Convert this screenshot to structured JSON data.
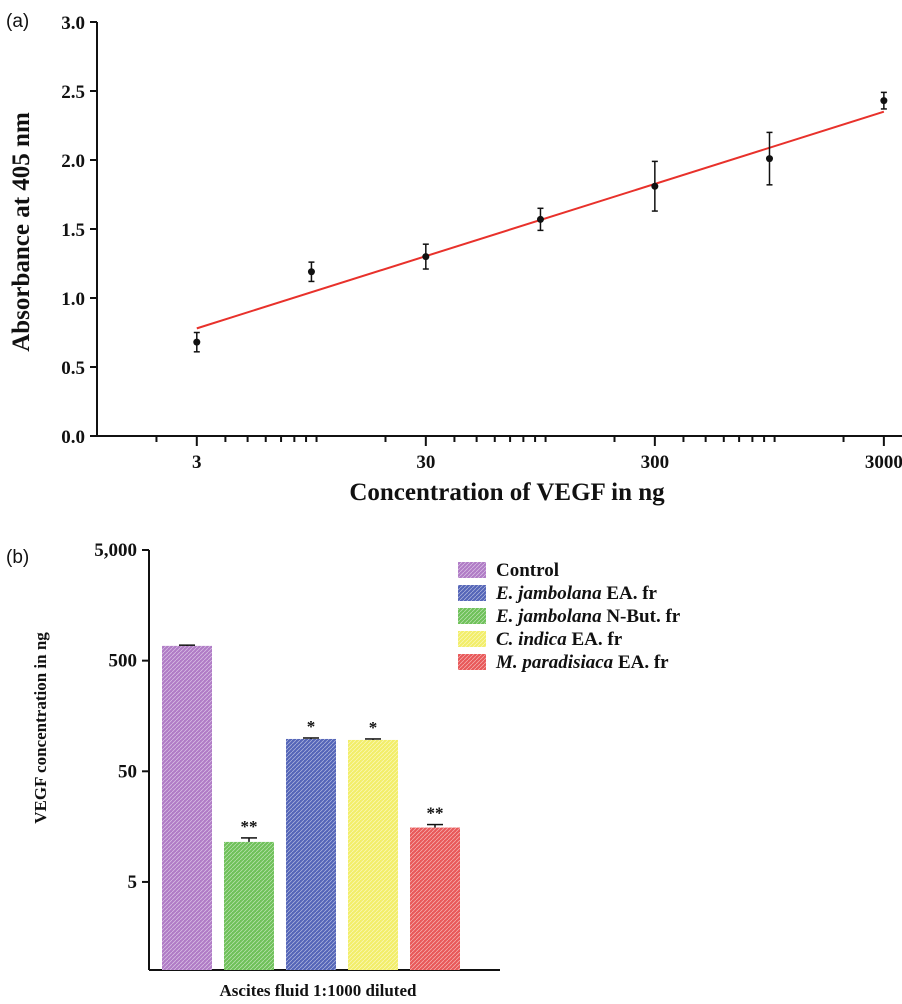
{
  "chart_data": [
    {
      "panel_label": "(a)",
      "type": "scatter",
      "xlabel": "Concentration of VEGF in ng",
      "ylabel": "Absorbance at 405 nm",
      "xscale": "log",
      "xlim": [
        1.1,
        3600
      ],
      "ylim": [
        0.0,
        3.0
      ],
      "xticks": [
        3,
        30,
        300,
        3000
      ],
      "xtick_labels": [
        "3",
        "30",
        "300",
        "3000"
      ],
      "yticks": [
        0.0,
        0.5,
        1.0,
        1.5,
        2.0,
        2.5,
        3.0
      ],
      "ytick_labels": [
        "0.0",
        "0.5",
        "1.0",
        "1.5",
        "2.0",
        "2.5",
        "3.0"
      ],
      "grid": false,
      "points": {
        "x": [
          3,
          9.5,
          30,
          95,
          300,
          950,
          3000
        ],
        "y": [
          0.68,
          1.19,
          1.3,
          1.57,
          1.81,
          2.01,
          2.43
        ],
        "err": [
          0.07,
          0.07,
          0.09,
          0.08,
          0.18,
          0.19,
          0.06
        ]
      },
      "fit_line": {
        "x": [
          3,
          3000
        ],
        "y": [
          0.78,
          2.35
        ],
        "color": "#e8312b"
      }
    },
    {
      "panel_label": "(b)",
      "type": "bar",
      "xlabel": "Ascites fluid 1:1000 diluted",
      "ylabel": "VEGF concentration in ng",
      "yscale": "log",
      "ylim": [
        0.8,
        5000
      ],
      "yticks": [
        5,
        50,
        500,
        5000
      ],
      "ytick_labels": [
        "5",
        "50",
        "500",
        "5,000"
      ],
      "grid": false,
      "legend_position": "top-right",
      "series": [
        {
          "name_italic": "",
          "name_rest": "Control",
          "value": 680,
          "err": 10,
          "sig": "",
          "color": "#b07cc6"
        },
        {
          "name_italic": "E. jambolana",
          "name_rest": " N-But. fr",
          "value": 11.5,
          "err": 1.0,
          "sig": "**",
          "color": "#6fc15a"
        },
        {
          "name_italic": "E. jambolana",
          "name_rest": " EA. fr",
          "value": 98,
          "err": 2,
          "sig": "*",
          "color": "#5566b8"
        },
        {
          "name_italic": "C. indica",
          "name_rest": " EA. fr",
          "value": 96,
          "err": 2,
          "sig": "*",
          "color": "#f2ee6a"
        },
        {
          "name_italic": "M. paradisiaca",
          "name_rest": " EA. fr",
          "value": 15.5,
          "err": 1.0,
          "sig": "**",
          "color": "#e8595a"
        }
      ],
      "legend_order": [
        0,
        2,
        1,
        3,
        4
      ]
    }
  ]
}
